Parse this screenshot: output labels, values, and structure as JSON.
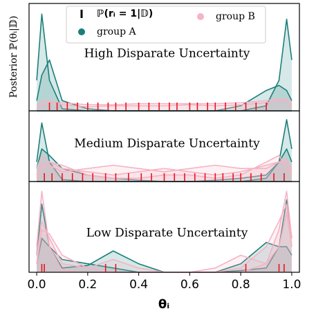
{
  "chart_data": {
    "type": "density",
    "ylabel": "Posterior ℙ(θᵢ|𝔻)",
    "xlabel": "θᵢ",
    "xlim": [
      -0.03,
      1.03
    ],
    "xticks": [
      {
        "value": 0,
        "label": "0.0"
      },
      0.2,
      0.4,
      0.6,
      0.8,
      {
        "value": 1,
        "label": "1.0"
      }
    ],
    "ylim": [
      0,
      1
    ],
    "rug_name": "ℙ(rᵢ = 1|𝔻)",
    "rug_color": "#e8141c",
    "groups": [
      {
        "name": "group A",
        "color": "#1a7f7a"
      },
      {
        "name": "group B",
        "color": "#f5b3c3"
      }
    ],
    "x": [
      0,
      0.02,
      0.05,
      0.1,
      0.2,
      0.3,
      0.4,
      0.5,
      0.6,
      0.7,
      0.8,
      0.9,
      0.95,
      0.98,
      1
    ],
    "panels": [
      {
        "title": "High Disparate Uncertainty",
        "series": [
          {
            "group": 0,
            "values": [
              0.3,
              0.95,
              0.3,
              0.02,
              0,
              0,
              0,
              0,
              0,
              0,
              0,
              0,
              0,
              0,
              0
            ]
          },
          {
            "group": 0,
            "values": [
              0,
              0,
              0,
              0,
              0,
              0,
              0,
              0,
              0,
              0,
              0,
              0.05,
              0.3,
              0.9,
              0.5
            ]
          },
          {
            "group": 0,
            "values": [
              0.1,
              0.35,
              0.5,
              0.1,
              0.02,
              0,
              0,
              0,
              0,
              0,
              0.05,
              0.2,
              0.25,
              0.2,
              0.1
            ]
          },
          {
            "group": 1,
            "values": [
              0.02,
              0.05,
              0.08,
              0.08,
              0.06,
              0.06,
              0.07,
              0.07,
              0.07,
              0.07,
              0.08,
              0.1,
              0.12,
              0.1,
              0.05
            ]
          },
          {
            "group": 1,
            "values": [
              0.05,
              0.1,
              0.1,
              0.06,
              0.04,
              0.05,
              0.05,
              0.05,
              0.06,
              0.05,
              0.06,
              0.08,
              0.1,
              0.12,
              0.08
            ]
          }
        ],
        "rug": [
          0.05,
          0.08,
          0.12,
          0.16,
          0.2,
          0.24,
          0.28,
          0.31,
          0.35,
          0.4,
          0.44,
          0.48,
          0.52,
          0.55,
          0.6,
          0.63,
          0.67,
          0.7,
          0.74,
          0.78,
          0.82,
          0.86,
          0.9
        ]
      },
      {
        "title": "Medium Disparate Uncertainty",
        "series": [
          {
            "group": 0,
            "values": [
              0.3,
              0.9,
              0.3,
              0.03,
              0,
              0,
              0,
              0,
              0,
              0,
              0,
              0,
              0,
              0,
              0
            ]
          },
          {
            "group": 0,
            "values": [
              0,
              0,
              0,
              0,
              0,
              0,
              0,
              0,
              0,
              0,
              0,
              0.05,
              0.3,
              0.95,
              0.5
            ]
          },
          {
            "group": 0,
            "values": [
              0.2,
              0.5,
              0.4,
              0.2,
              0.1,
              0.05,
              0.02,
              0,
              0,
              0.02,
              0.05,
              0.1,
              0.3,
              0.5,
              0.3
            ]
          },
          {
            "group": 1,
            "values": [
              0.1,
              0.3,
              0.25,
              0.15,
              0.2,
              0.25,
              0.2,
              0.15,
              0.2,
              0.25,
              0.2,
              0.2,
              0.3,
              0.35,
              0.2
            ]
          },
          {
            "group": 1,
            "values": [
              0.2,
              0.4,
              0.3,
              0.2,
              0.15,
              0.1,
              0.15,
              0.2,
              0.15,
              0.1,
              0.15,
              0.25,
              0.3,
              0.3,
              0.15
            ]
          },
          {
            "group": 1,
            "values": [
              0.05,
              0.2,
              0.3,
              0.25,
              0.1,
              0.05,
              0.05,
              0.1,
              0.1,
              0.05,
              0.1,
              0.3,
              0.4,
              0.2,
              0.1
            ]
          }
        ],
        "rug": [
          0.03,
          0.06,
          0.1,
          0.14,
          0.18,
          0.22,
          0.27,
          0.31,
          0.36,
          0.41,
          0.45,
          0.5,
          0.54,
          0.58,
          0.62,
          0.66,
          0.7,
          0.73,
          0.77,
          0.8,
          0.84,
          0.88,
          0.93,
          0.97
        ]
      },
      {
        "title": "Low Disparate Uncertainty",
        "series": [
          {
            "group": 0,
            "values": [
              0.2,
              0.8,
              0.3,
              0.05,
              0.08,
              0.25,
              0.1,
              0,
              0,
              0,
              0.02,
              0.05,
              0.3,
              0.85,
              0.4
            ]
          },
          {
            "group": 0,
            "values": [
              0.1,
              0.4,
              0.3,
              0.15,
              0.1,
              0.05,
              0,
              0,
              0,
              0,
              0.1,
              0.35,
              0.3,
              0.3,
              0.2
            ]
          },
          {
            "group": 1,
            "values": [
              0.3,
              0.95,
              0.3,
              0.02,
              0,
              0,
              0,
              0,
              0,
              0,
              0,
              0.1,
              0.5,
              0.95,
              0.4
            ]
          },
          {
            "group": 1,
            "values": [
              0.2,
              0.6,
              0.4,
              0.1,
              0.05,
              0.15,
              0.05,
              0,
              0,
              0.05,
              0.2,
              0.1,
              0.3,
              0.7,
              0.3
            ]
          },
          {
            "group": 1,
            "values": [
              0.1,
              0.5,
              0.45,
              0.2,
              0.05,
              0,
              0,
              0,
              0,
              0,
              0.05,
              0.3,
              0.6,
              0.8,
              0.3
            ]
          }
        ],
        "rug": [
          0.02,
          0.03,
          0.27,
          0.31,
          0.82,
          0.95,
          0.97
        ]
      }
    ]
  }
}
